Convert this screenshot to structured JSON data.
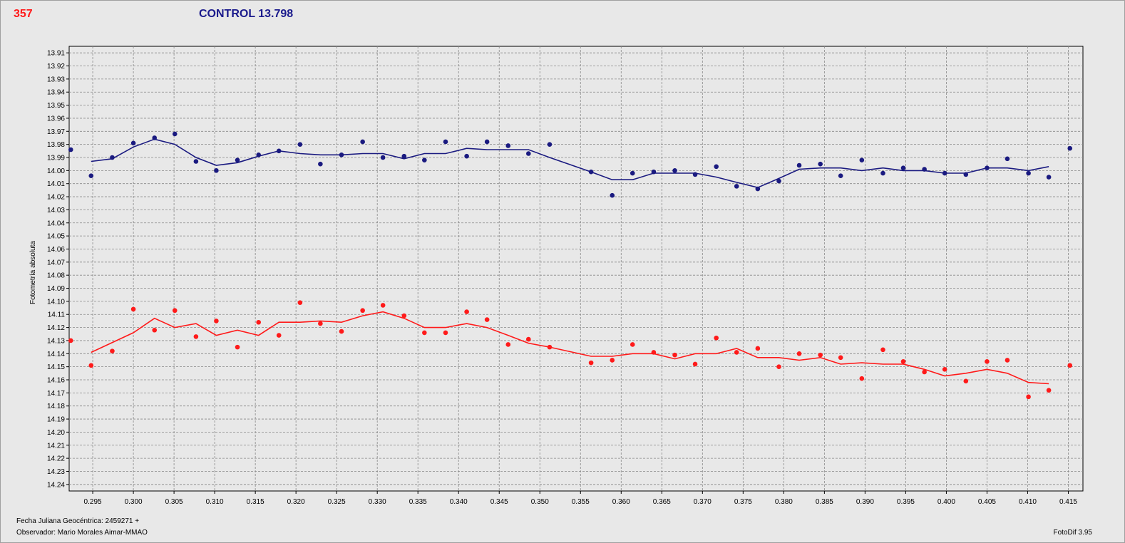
{
  "header": {
    "star_name": "357",
    "control_label": "CONTROL 13.798"
  },
  "footer": {
    "jd_label": "Fecha Juliana Geocéntrica: 2459271 +",
    "observer_label": "Observador: Mario Morales Aimar-MMAO",
    "version_label": "FotoDif 3.95"
  },
  "colors": {
    "control": "#1a1a80",
    "variable": "#ff1a1a",
    "grid": "#888888",
    "plot_bg": "#e8e8e8"
  },
  "chart_data": {
    "type": "scatter",
    "xlabel": "",
    "ylabel": "Fotometría absoluta",
    "xlim": [
      0.2921,
      0.4168
    ],
    "ylim": [
      14.245,
      13.905
    ],
    "y_inverted": true,
    "grid": true,
    "x_ticks": [
      "0.295",
      "0.300",
      "0.305",
      "0.310",
      "0.315",
      "0.320",
      "0.325",
      "0.330",
      "0.335",
      "0.340",
      "0.345",
      "0.350",
      "0.355",
      "0.360",
      "0.365",
      "0.370",
      "0.375",
      "0.380",
      "0.385",
      "0.390",
      "0.395",
      "0.400",
      "0.405",
      "0.410",
      "0.415"
    ],
    "y_ticks": [
      "13.91",
      "13.92",
      "13.93",
      "13.94",
      "13.95",
      "13.96",
      "13.97",
      "13.98",
      "13.99",
      "14.00",
      "14.01",
      "14.02",
      "14.03",
      "14.04",
      "14.05",
      "14.06",
      "14.07",
      "14.08",
      "14.09",
      "14.10",
      "14.11",
      "14.12",
      "14.13",
      "14.14",
      "14.15",
      "14.16",
      "14.17",
      "14.18",
      "14.19",
      "14.20",
      "14.21",
      "14.22",
      "14.23",
      "14.24"
    ],
    "series": [
      {
        "name": "CONTROL 13.798",
        "points": [
          [
            0.2923,
            13.984
          ],
          [
            0.2948,
            14.004
          ],
          [
            0.2974,
            13.99
          ],
          [
            0.3,
            13.979
          ],
          [
            0.3026,
            13.975
          ],
          [
            0.3051,
            13.972
          ],
          [
            0.3077,
            13.993
          ],
          [
            0.3102,
            14.0
          ],
          [
            0.3128,
            13.992
          ],
          [
            0.3154,
            13.988
          ],
          [
            0.3179,
            13.985
          ],
          [
            0.3205,
            13.98
          ],
          [
            0.323,
            13.995
          ],
          [
            0.3256,
            13.988
          ],
          [
            0.3282,
            13.978
          ],
          [
            0.3307,
            13.99
          ],
          [
            0.3333,
            13.989
          ],
          [
            0.3358,
            13.992
          ],
          [
            0.3384,
            13.978
          ],
          [
            0.341,
            13.989
          ],
          [
            0.3435,
            13.978
          ],
          [
            0.3461,
            13.981
          ],
          [
            0.3486,
            13.987
          ],
          [
            0.3512,
            13.98
          ],
          [
            0.3563,
            14.001
          ],
          [
            0.3589,
            14.019
          ],
          [
            0.3614,
            14.002
          ],
          [
            0.364,
            14.001
          ],
          [
            0.3666,
            14.0
          ],
          [
            0.3691,
            14.003
          ],
          [
            0.3717,
            13.997
          ],
          [
            0.3742,
            14.012
          ],
          [
            0.3768,
            14.014
          ],
          [
            0.3794,
            14.008
          ],
          [
            0.3819,
            13.996
          ],
          [
            0.3845,
            13.995
          ],
          [
            0.387,
            14.004
          ],
          [
            0.3896,
            13.992
          ],
          [
            0.3922,
            14.002
          ],
          [
            0.3947,
            13.998
          ],
          [
            0.3973,
            13.999
          ],
          [
            0.3998,
            14.002
          ],
          [
            0.4024,
            14.003
          ],
          [
            0.405,
            13.998
          ],
          [
            0.4075,
            13.991
          ],
          [
            0.4101,
            14.002
          ],
          [
            0.4126,
            14.005
          ],
          [
            0.4152,
            13.983
          ]
        ],
        "trend": [
          [
            0.2948,
            13.993
          ],
          [
            0.2974,
            13.991
          ],
          [
            0.3,
            13.982
          ],
          [
            0.3026,
            13.976
          ],
          [
            0.3051,
            13.98
          ],
          [
            0.3077,
            13.99
          ],
          [
            0.3102,
            13.996
          ],
          [
            0.3128,
            13.994
          ],
          [
            0.3154,
            13.989
          ],
          [
            0.3179,
            13.985
          ],
          [
            0.3205,
            13.987
          ],
          [
            0.323,
            13.988
          ],
          [
            0.3256,
            13.988
          ],
          [
            0.3282,
            13.987
          ],
          [
            0.3307,
            13.987
          ],
          [
            0.3333,
            13.991
          ],
          [
            0.3358,
            13.987
          ],
          [
            0.3384,
            13.987
          ],
          [
            0.341,
            13.983
          ],
          [
            0.3435,
            13.984
          ],
          [
            0.3461,
            13.984
          ],
          [
            0.3486,
            13.984
          ],
          [
            0.3512,
            13.99
          ],
          [
            0.3563,
            14.001
          ],
          [
            0.3589,
            14.007
          ],
          [
            0.3614,
            14.007
          ],
          [
            0.364,
            14.002
          ],
          [
            0.3666,
            14.002
          ],
          [
            0.3691,
            14.002
          ],
          [
            0.3717,
            14.005
          ],
          [
            0.3742,
            14.009
          ],
          [
            0.3768,
            14.013
          ],
          [
            0.3794,
            14.006
          ],
          [
            0.3819,
            13.999
          ],
          [
            0.3845,
            13.998
          ],
          [
            0.387,
            13.998
          ],
          [
            0.3896,
            14.0
          ],
          [
            0.3922,
            13.998
          ],
          [
            0.3947,
            14.0
          ],
          [
            0.3973,
            14.0
          ],
          [
            0.3998,
            14.002
          ],
          [
            0.4024,
            14.002
          ],
          [
            0.405,
            13.998
          ],
          [
            0.4075,
            13.998
          ],
          [
            0.4101,
            14.0
          ],
          [
            0.4126,
            13.997
          ]
        ]
      },
      {
        "name": "357",
        "points": [
          [
            0.2923,
            14.13
          ],
          [
            0.2948,
            14.149
          ],
          [
            0.2974,
            14.138
          ],
          [
            0.3,
            14.106
          ],
          [
            0.3026,
            14.122
          ],
          [
            0.3051,
            14.107
          ],
          [
            0.3077,
            14.127
          ],
          [
            0.3102,
            14.115
          ],
          [
            0.3128,
            14.135
          ],
          [
            0.3154,
            14.116
          ],
          [
            0.3179,
            14.126
          ],
          [
            0.3205,
            14.101
          ],
          [
            0.323,
            14.117
          ],
          [
            0.3256,
            14.123
          ],
          [
            0.3282,
            14.107
          ],
          [
            0.3307,
            14.103
          ],
          [
            0.3333,
            14.111
          ],
          [
            0.3358,
            14.124
          ],
          [
            0.3384,
            14.124
          ],
          [
            0.341,
            14.108
          ],
          [
            0.3435,
            14.114
          ],
          [
            0.3461,
            14.133
          ],
          [
            0.3486,
            14.129
          ],
          [
            0.3512,
            14.135
          ],
          [
            0.3563,
            14.147
          ],
          [
            0.3589,
            14.145
          ],
          [
            0.3614,
            14.133
          ],
          [
            0.364,
            14.139
          ],
          [
            0.3666,
            14.141
          ],
          [
            0.3691,
            14.148
          ],
          [
            0.3717,
            14.128
          ],
          [
            0.3742,
            14.139
          ],
          [
            0.3768,
            14.136
          ],
          [
            0.3794,
            14.15
          ],
          [
            0.3819,
            14.14
          ],
          [
            0.3845,
            14.141
          ],
          [
            0.387,
            14.143
          ],
          [
            0.3896,
            14.159
          ],
          [
            0.3922,
            14.137
          ],
          [
            0.3947,
            14.146
          ],
          [
            0.3973,
            14.154
          ],
          [
            0.3998,
            14.152
          ],
          [
            0.4024,
            14.161
          ],
          [
            0.405,
            14.146
          ],
          [
            0.4075,
            14.145
          ],
          [
            0.4101,
            14.173
          ],
          [
            0.4126,
            14.168
          ],
          [
            0.4152,
            14.149
          ]
        ],
        "trend": [
          [
            0.2948,
            14.139
          ],
          [
            0.3,
            14.124
          ],
          [
            0.3026,
            14.113
          ],
          [
            0.3051,
            14.12
          ],
          [
            0.3077,
            14.117
          ],
          [
            0.3102,
            14.126
          ],
          [
            0.3128,
            14.122
          ],
          [
            0.3154,
            14.126
          ],
          [
            0.3179,
            14.116
          ],
          [
            0.3205,
            14.116
          ],
          [
            0.323,
            14.115
          ],
          [
            0.3256,
            14.116
          ],
          [
            0.3282,
            14.111
          ],
          [
            0.3307,
            14.108
          ],
          [
            0.3333,
            14.113
          ],
          [
            0.3358,
            14.12
          ],
          [
            0.3384,
            14.12
          ],
          [
            0.341,
            14.117
          ],
          [
            0.3435,
            14.12
          ],
          [
            0.3461,
            14.126
          ],
          [
            0.3486,
            14.132
          ],
          [
            0.3512,
            14.135
          ],
          [
            0.3563,
            14.142
          ],
          [
            0.3589,
            14.142
          ],
          [
            0.3614,
            14.14
          ],
          [
            0.364,
            14.14
          ],
          [
            0.3666,
            14.144
          ],
          [
            0.3691,
            14.14
          ],
          [
            0.3717,
            14.14
          ],
          [
            0.3742,
            14.136
          ],
          [
            0.3768,
            14.143
          ],
          [
            0.3794,
            14.143
          ],
          [
            0.3819,
            14.145
          ],
          [
            0.3845,
            14.143
          ],
          [
            0.387,
            14.148
          ],
          [
            0.3896,
            14.147
          ],
          [
            0.3922,
            14.148
          ],
          [
            0.3947,
            14.148
          ],
          [
            0.3973,
            14.152
          ],
          [
            0.3998,
            14.157
          ],
          [
            0.4024,
            14.155
          ],
          [
            0.405,
            14.152
          ],
          [
            0.4075,
            14.155
          ],
          [
            0.4101,
            14.162
          ],
          [
            0.4126,
            14.163
          ]
        ]
      }
    ]
  }
}
